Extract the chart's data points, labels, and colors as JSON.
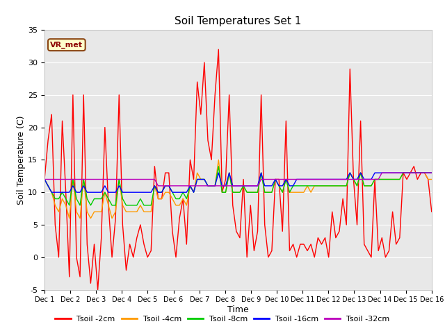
{
  "title": "Soil Temperatures Set 1",
  "xlabel": "Time",
  "ylabel": "Soil Temperature (C)",
  "ylim": [
    -5,
    35
  ],
  "xlim": [
    0,
    15
  ],
  "xtick_labels": [
    "Dec 1",
    "Dec 2",
    "Dec 3",
    "Dec 4",
    "Dec 5",
    "Dec 6",
    "Dec 7",
    "Dec 8",
    "Dec 9",
    "Dec 10",
    "Dec 11",
    "Dec 12",
    "Dec 13",
    "Dec 14",
    "Dec 15",
    "Dec 16"
  ],
  "ytick_values": [
    -5,
    0,
    5,
    10,
    15,
    20,
    25,
    30,
    35
  ],
  "annotation_text": "VR_met",
  "bg_color": "#e8e8e8",
  "line_colors": {
    "Tsoil -2cm": "#ff0000",
    "Tsoil -4cm": "#ff9900",
    "Tsoil -8cm": "#00cc00",
    "Tsoil -16cm": "#0000ff",
    "Tsoil -32cm": "#bb00bb"
  },
  "tsoil_2cm": [
    12,
    18,
    22,
    5,
    0,
    21,
    10,
    -3,
    25,
    0,
    -3,
    25,
    2,
    -4,
    2,
    -5,
    3,
    20,
    8,
    0,
    6,
    25,
    5,
    -2,
    2,
    0,
    3,
    5,
    2,
    0,
    1,
    14,
    9,
    9,
    13,
    13,
    4,
    0,
    6,
    9,
    2,
    15,
    12,
    27,
    22,
    30,
    18,
    15,
    25,
    32,
    10,
    12,
    25,
    8,
    4,
    3,
    12,
    0,
    8,
    1,
    4,
    25,
    5,
    0,
    1,
    12,
    12,
    4,
    21,
    1,
    2,
    0,
    2,
    2,
    1,
    2,
    0,
    3,
    2,
    3,
    0,
    7,
    3,
    4,
    9,
    5,
    29,
    12,
    5,
    21,
    2,
    1,
    0,
    12,
    1,
    3,
    0,
    1,
    7,
    2,
    3,
    13,
    12,
    13,
    14,
    12,
    13,
    13,
    12,
    7
  ],
  "tsoil_4cm": [
    12,
    11,
    10,
    8,
    7,
    9,
    8,
    6,
    12,
    7,
    6,
    12,
    7,
    6,
    7,
    7,
    7,
    10,
    8,
    6,
    7,
    12,
    8,
    7,
    7,
    7,
    7,
    8,
    7,
    7,
    7,
    11,
    9,
    9,
    10,
    10,
    9,
    8,
    8,
    9,
    8,
    11,
    10,
    13,
    12,
    12,
    11,
    11,
    11,
    15,
    10,
    10,
    13,
    10,
    10,
    10,
    11,
    10,
    10,
    10,
    10,
    13,
    10,
    10,
    10,
    12,
    11,
    10,
    12,
    10,
    10,
    10,
    10,
    10,
    11,
    10,
    11,
    11,
    11,
    11,
    11,
    11,
    11,
    11,
    11,
    11,
    13,
    12,
    11,
    13,
    11,
    11,
    11,
    12,
    12,
    12,
    12,
    12,
    12,
    12,
    12,
    13,
    13,
    13,
    13,
    13,
    13,
    13,
    12,
    12
  ],
  "tsoil_8cm": [
    12,
    11,
    10,
    9,
    9,
    10,
    9,
    8,
    12,
    9,
    8,
    12,
    9,
    8,
    9,
    9,
    9,
    10,
    9,
    8,
    8,
    12,
    9,
    8,
    8,
    8,
    8,
    9,
    8,
    8,
    8,
    11,
    10,
    10,
    11,
    11,
    10,
    9,
    9,
    10,
    9,
    11,
    10,
    12,
    12,
    12,
    11,
    11,
    11,
    14,
    10,
    10,
    13,
    10,
    10,
    10,
    11,
    10,
    10,
    10,
    10,
    13,
    10,
    10,
    10,
    12,
    11,
    10,
    12,
    10,
    11,
    11,
    11,
    11,
    11,
    11,
    11,
    11,
    11,
    11,
    11,
    11,
    11,
    11,
    11,
    11,
    13,
    12,
    11,
    13,
    11,
    11,
    11,
    12,
    12,
    12,
    12,
    12,
    12,
    12,
    12,
    13,
    13,
    13,
    13,
    13,
    13,
    13,
    13,
    13
  ],
  "tsoil_16cm": [
    12,
    11,
    10,
    10,
    10,
    10,
    10,
    10,
    11,
    10,
    10,
    11,
    10,
    10,
    10,
    10,
    10,
    11,
    10,
    10,
    10,
    11,
    10,
    10,
    10,
    10,
    10,
    10,
    10,
    10,
    10,
    11,
    10,
    10,
    11,
    11,
    10,
    10,
    10,
    10,
    10,
    11,
    10,
    12,
    12,
    12,
    11,
    11,
    11,
    13,
    11,
    11,
    13,
    11,
    11,
    11,
    11,
    11,
    11,
    11,
    11,
    13,
    11,
    11,
    11,
    12,
    11,
    11,
    12,
    11,
    11,
    12,
    12,
    12,
    12,
    12,
    12,
    12,
    12,
    12,
    12,
    12,
    12,
    12,
    12,
    12,
    13,
    12,
    12,
    13,
    12,
    12,
    12,
    13,
    13,
    13,
    13,
    13,
    13,
    13,
    13,
    13,
    13,
    13,
    13,
    13,
    13,
    13,
    13,
    13
  ],
  "tsoil_32cm": [
    12,
    12,
    12,
    12,
    12,
    12,
    12,
    12,
    12,
    12,
    12,
    12,
    12,
    12,
    12,
    12,
    12,
    12,
    12,
    12,
    12,
    12,
    12,
    12,
    12,
    12,
    12,
    12,
    12,
    12,
    12,
    12,
    11,
    11,
    11,
    11,
    11,
    11,
    11,
    11,
    11,
    11,
    11,
    11,
    11,
    11,
    11,
    11,
    11,
    11,
    11,
    11,
    11,
    11,
    11,
    11,
    11,
    11,
    11,
    11,
    11,
    12,
    12,
    12,
    12,
    12,
    12,
    12,
    12,
    12,
    12,
    12,
    12,
    12,
    12,
    12,
    12,
    12,
    12,
    12,
    12,
    12,
    12,
    12,
    12,
    12,
    12,
    12,
    12,
    12,
    12,
    12,
    12,
    12,
    12,
    13,
    13,
    13,
    13,
    13,
    13,
    13,
    13,
    13,
    13,
    13,
    13,
    13,
    13,
    13
  ]
}
